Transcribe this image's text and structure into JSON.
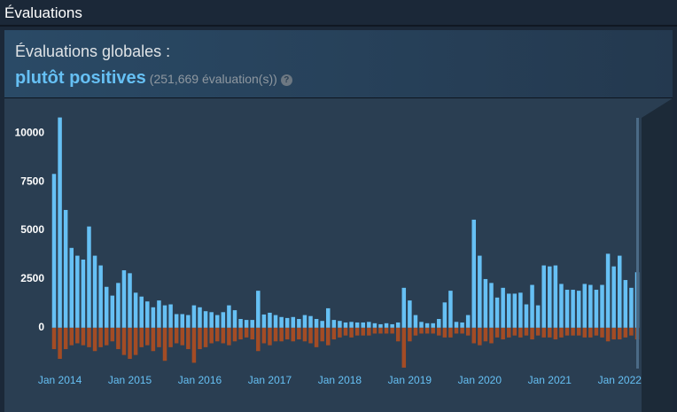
{
  "header": {
    "title": "Évaluations"
  },
  "summary": {
    "heading": "Évaluations globales :",
    "rating": "plutôt positives",
    "count_label": "(251,669 évaluation(s))",
    "help": "?"
  },
  "chart_data": {
    "type": "bar",
    "categories": [
      null,
      "Jan 2014",
      null,
      null,
      null,
      null,
      null,
      null,
      null,
      null,
      null,
      null,
      null,
      "Jan 2015",
      null,
      null,
      null,
      null,
      null,
      null,
      null,
      null,
      null,
      null,
      null,
      "Jan 2016",
      null,
      null,
      null,
      null,
      null,
      null,
      null,
      null,
      null,
      null,
      null,
      "Jan 2017",
      null,
      null,
      null,
      null,
      null,
      null,
      null,
      null,
      null,
      null,
      null,
      "Jan 2018",
      null,
      null,
      null,
      null,
      null,
      null,
      null,
      null,
      null,
      null,
      null,
      "Jan 2019",
      null,
      null,
      null,
      null,
      null,
      null,
      null,
      null,
      null,
      null,
      null,
      "Jan 2020",
      null,
      null,
      null,
      null,
      null,
      null,
      null,
      null,
      null,
      null,
      null,
      "Jan 2021",
      null,
      null,
      null,
      null,
      null,
      null,
      null,
      null,
      null,
      null,
      null,
      "Jan 2022",
      null,
      null,
      null
    ],
    "series": [
      {
        "color": "#66c0f4",
        "values": [
          7900,
          10800,
          6050,
          4100,
          3700,
          3500,
          5200,
          3700,
          3200,
          2100,
          1650,
          2300,
          2950,
          2800,
          1800,
          1600,
          1350,
          1050,
          1400,
          1150,
          1200,
          700,
          700,
          650,
          1150,
          1050,
          850,
          800,
          650,
          800,
          1150,
          900,
          450,
          400,
          400,
          1900,
          680,
          770,
          650,
          550,
          500,
          550,
          450,
          650,
          600,
          450,
          350,
          1000,
          400,
          350,
          270,
          300,
          270,
          270,
          300,
          230,
          180,
          230,
          180,
          270,
          2050,
          1400,
          650,
          300,
          230,
          230,
          450,
          1300,
          1900,
          300,
          270,
          650,
          5550,
          3700,
          2500,
          2300,
          1550,
          2050,
          1750,
          1750,
          1800,
          1200,
          2200,
          1150,
          3200,
          3150,
          3200,
          2250,
          1950,
          1950,
          1900,
          2250,
          2200,
          1950,
          2200,
          3800,
          3150,
          3700,
          2450,
          2050,
          2850
        ]
      },
      {
        "color": "#a34c25",
        "values": [
          -1100,
          -1600,
          -1100,
          -900,
          -800,
          -900,
          -1000,
          -1200,
          -1000,
          -900,
          -700,
          -1100,
          -1400,
          -1600,
          -1400,
          -1000,
          -900,
          -1200,
          -1000,
          -1700,
          -1000,
          -800,
          -900,
          -1100,
          -1800,
          -1100,
          -1000,
          -800,
          -700,
          -800,
          -900,
          -700,
          -600,
          -500,
          -600,
          -1200,
          -800,
          -900,
          -700,
          -700,
          -600,
          -700,
          -600,
          -700,
          -800,
          -1000,
          -700,
          -900,
          -600,
          -500,
          -400,
          -500,
          -400,
          -400,
          -400,
          -300,
          -300,
          -300,
          -300,
          -700,
          -2050,
          -700,
          -400,
          -300,
          -300,
          -300,
          -400,
          -500,
          -500,
          -300,
          -300,
          -400,
          -800,
          -900,
          -700,
          -800,
          -500,
          -600,
          -500,
          -400,
          -500,
          -400,
          -600,
          -400,
          -500,
          -500,
          -600,
          -500,
          -400,
          -400,
          -400,
          -500,
          -500,
          -400,
          -500,
          -700,
          -600,
          -600,
          -500,
          -400,
          -600
        ]
      }
    ],
    "ylim": [
      -3100,
      11600
    ],
    "yticks": [
      0,
      2500,
      5000,
      7500,
      10000
    ]
  }
}
